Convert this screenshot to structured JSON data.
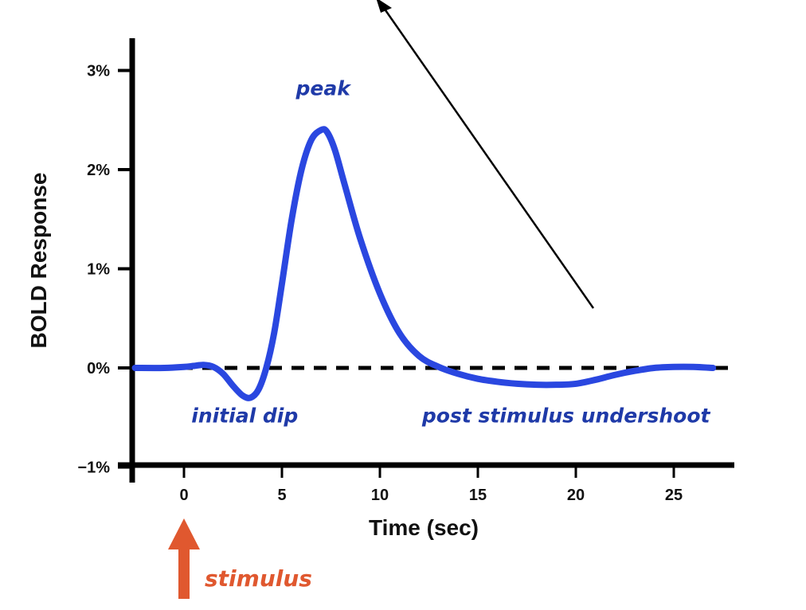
{
  "chart_data": {
    "type": "line",
    "title": "",
    "xlabel": "Time (sec)",
    "ylabel": "BOLD Response",
    "xlim": [
      -2.5,
      28.5
    ],
    "ylim": [
      -1,
      3.3
    ],
    "x_ticks": [
      0,
      5,
      10,
      15,
      20,
      25
    ],
    "x_tick_labels": [
      "0",
      "5",
      "10",
      "15",
      "20",
      "25"
    ],
    "y_ticks": [
      -1,
      0,
      1,
      2,
      3
    ],
    "y_tick_labels": [
      "−1%",
      "0%",
      "1%",
      "2%",
      "3%"
    ],
    "baseline": {
      "y": 0,
      "style": "dashed",
      "color": "#000000"
    },
    "series": [
      {
        "color": "#2a47e0",
        "x": [
          -2.5,
          -1,
          0,
          0.5,
          1,
          1.5,
          2,
          2.5,
          3,
          3.4,
          3.8,
          4.2,
          4.6,
          5,
          5.5,
          6,
          6.5,
          7,
          7.3,
          7.7,
          8.2,
          9,
          10,
          11,
          12,
          13,
          14,
          15,
          16,
          17,
          18,
          19,
          20,
          21,
          22,
          23,
          24,
          25,
          26,
          27
        ],
        "y": [
          0,
          0,
          0.01,
          0.02,
          0.03,
          0.01,
          -0.06,
          -0.18,
          -0.28,
          -0.3,
          -0.22,
          0.0,
          0.35,
          0.85,
          1.5,
          2.0,
          2.3,
          2.4,
          2.38,
          2.2,
          1.85,
          1.3,
          0.75,
          0.35,
          0.12,
          0.01,
          -0.06,
          -0.11,
          -0.14,
          -0.16,
          -0.17,
          -0.17,
          -0.16,
          -0.12,
          -0.07,
          -0.03,
          0.0,
          0.01,
          0.01,
          0.0
        ]
      }
    ],
    "annotations": [
      {
        "text": "peak",
        "x": 7.1,
        "y": 2.75
      },
      {
        "text": "initial dip",
        "x": 3.1,
        "y": -0.55
      },
      {
        "text": "post stimulus undershoot",
        "x": 19.5,
        "y": -0.55
      }
    ],
    "stimulus": {
      "label": "stimulus",
      "x": 0,
      "color": "#e0582f"
    }
  }
}
